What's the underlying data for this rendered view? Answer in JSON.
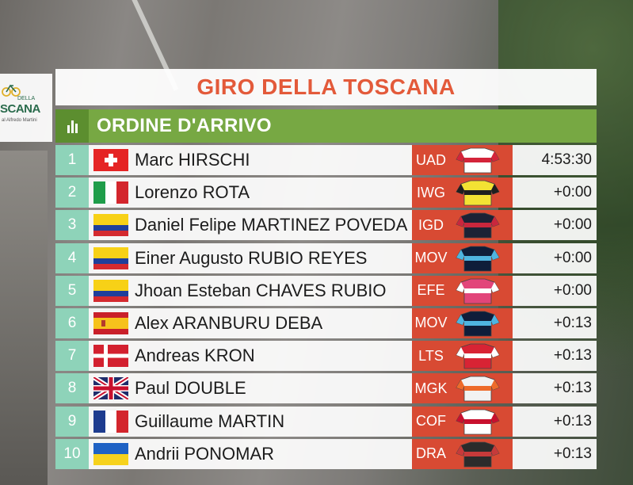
{
  "event": {
    "logo_top": "DELLA",
    "logo_main": "SCANA",
    "logo_sub": "al Alfredo Martini",
    "title": "GIRO DELLA TOSCANA",
    "subtitle": "ORDINE D'ARRIVO"
  },
  "results": [
    {
      "pos": "1",
      "flag": "switzerland",
      "name": "Marc HIRSCHI",
      "team": "UAD",
      "jersey_color": "#ffffff",
      "jersey_accent": "#d4243a",
      "time": "4:53:30"
    },
    {
      "pos": "2",
      "flag": "italy",
      "name": "Lorenzo ROTA",
      "team": "IWG",
      "jersey_color": "#f3e233",
      "jersey_accent": "#1f1f1f",
      "time": "+0:00"
    },
    {
      "pos": "3",
      "flag": "colombia",
      "name": "Daniel Felipe MARTINEZ POVEDA",
      "team": "IGD",
      "jersey_color": "#1c2235",
      "jersey_accent": "#c9273d",
      "time": "+0:00"
    },
    {
      "pos": "4",
      "flag": "colombia",
      "name": "Einer Augusto RUBIO REYES",
      "team": "MOV",
      "jersey_color": "#0f1d3a",
      "jersey_accent": "#4fb4e0",
      "time": "+0:00"
    },
    {
      "pos": "5",
      "flag": "colombia",
      "name": "Jhoan Esteban CHAVES RUBIO",
      "team": "EFE",
      "jersey_color": "#e2457a",
      "jersey_accent": "#ffffff",
      "time": "+0:00"
    },
    {
      "pos": "6",
      "flag": "spain",
      "name": "Alex ARANBURU DEBA",
      "team": "MOV",
      "jersey_color": "#0f1d3a",
      "jersey_accent": "#4fb4e0",
      "time": "+0:13"
    },
    {
      "pos": "7",
      "flag": "denmark",
      "name": "Andreas KRON",
      "team": "LTS",
      "jersey_color": "#d82334",
      "jersey_accent": "#ffffff",
      "time": "+0:13"
    },
    {
      "pos": "8",
      "flag": "uk",
      "name": "Paul DOUBLE",
      "team": "MGK",
      "jersey_color": "#f2f2f2",
      "jersey_accent": "#ee6b2a",
      "time": "+0:13"
    },
    {
      "pos": "9",
      "flag": "france",
      "name": "Guillaume MARTIN",
      "team": "COF",
      "jersey_color": "#ffffff",
      "jersey_accent": "#c8102e",
      "time": "+0:13"
    },
    {
      "pos": "10",
      "flag": "ukraine",
      "name": "Andrii PONOMAR",
      "team": "DRA",
      "jersey_color": "#2b2b2b",
      "jersey_accent": "#c73a3a",
      "time": "+0:13"
    }
  ]
}
